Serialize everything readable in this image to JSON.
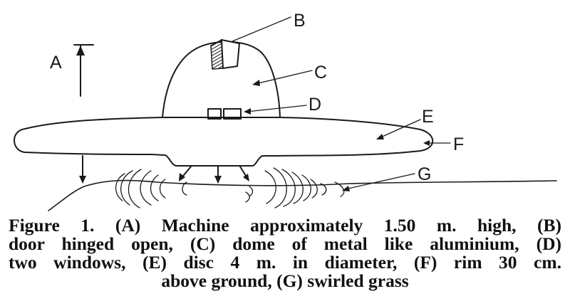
{
  "labels": {
    "a": "A",
    "b": "B",
    "c": "C",
    "d": "D",
    "e": "E",
    "f": "F",
    "g": "G"
  },
  "caption": {
    "line1": "Figure 1. (A) Machine approximately 1.50 m. high, (B)",
    "line2": "door hinged open, (C) dome of metal like aluminium, (D)",
    "line3": "two windows, (E) disc 4 m. in diameter, (F) rim 30 cm.",
    "line4": "above ground, (G) swirled grass"
  },
  "colors": {
    "ink": "#1a1a1a",
    "background": "#ffffff"
  }
}
